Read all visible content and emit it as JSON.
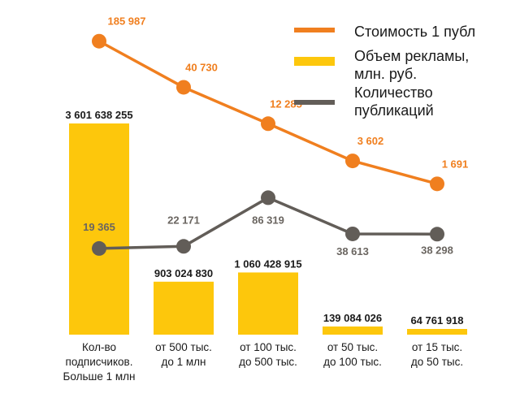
{
  "chart_data": {
    "type": "bar",
    "categories": [
      [
        "Кол-во",
        "подписчиков.",
        "Больше 1 млн"
      ],
      [
        "от 500 тыс.",
        "до 1 млн"
      ],
      [
        "от 100 тыс.",
        "до 500 тыс."
      ],
      [
        "от 50 тыс.",
        "до 100 тыс."
      ],
      [
        "от 15 тыс.",
        "до 50 тыс."
      ]
    ],
    "series": [
      {
        "name": "Объем рекламы, млн. руб.",
        "name_lines": [
          "Объем рекламы,",
          "млн. руб."
        ],
        "type": "bar",
        "color": "#fdc70c",
        "values": [
          3601638255,
          903024830,
          1060428915,
          139084026,
          64761918
        ],
        "labels": [
          "3 601 638 255",
          "903 024 830",
          "1 060 428 915",
          "139 084 026",
          "64 761 918"
        ]
      },
      {
        "name": "Стоимость 1 публ",
        "name_lines": [
          "Стоимость 1 публ"
        ],
        "type": "line",
        "color": "#f07f1f",
        "values": [
          185987,
          40730,
          12285,
          3602,
          1691
        ],
        "labels": [
          "185 987",
          "40 730",
          "12 285",
          "3 602",
          "1 691"
        ]
      },
      {
        "name": "Количество публикаций",
        "name_lines": [
          "Количество",
          "публикаций"
        ],
        "type": "line",
        "color": "#625d58",
        "values": [
          19365,
          22171,
          86319,
          38613,
          38298
        ],
        "labels": [
          "19 365",
          "22 171",
          "86 319",
          "38 613",
          "38 298"
        ]
      }
    ],
    "legend_position": "top-right",
    "grid": false
  }
}
